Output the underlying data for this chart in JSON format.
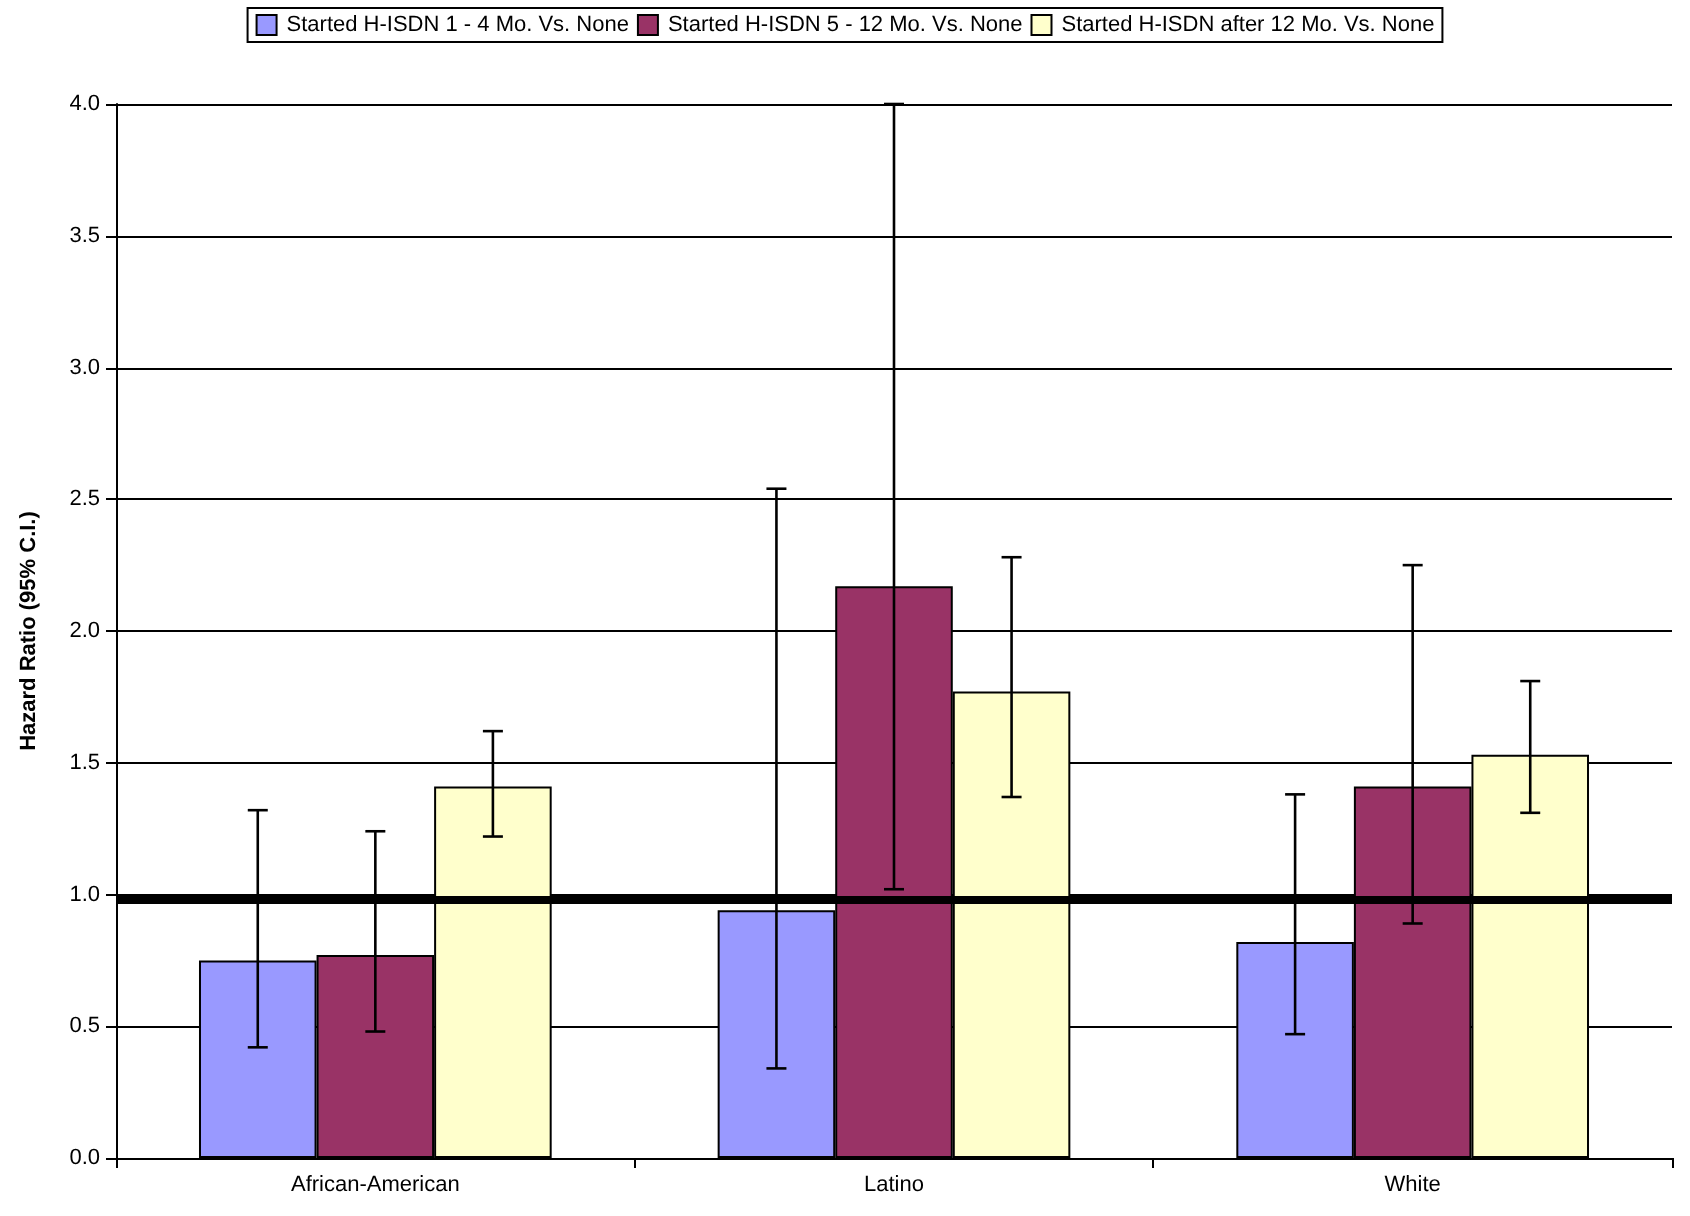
{
  "chart_data": {
    "type": "bar",
    "ylabel": "Hazard Ratio (95% C.I.)",
    "categories": [
      "African-American",
      "Latino",
      "White"
    ],
    "series": [
      {
        "name": "Started H-ISDN 1 - 4 Mo. Vs. None",
        "color": "#9999ff",
        "values": [
          0.75,
          0.94,
          0.82
        ],
        "errors": [
          [
            0.42,
            1.32
          ],
          [
            0.34,
            2.54
          ],
          [
            0.47,
            1.38
          ]
        ]
      },
      {
        "name": "Started H-ISDN 5 - 12 Mo. Vs. None",
        "color": "#993366",
        "values": [
          0.77,
          2.17,
          1.41
        ],
        "errors": [
          [
            0.48,
            1.24
          ],
          [
            1.02,
            4.0
          ],
          [
            0.89,
            2.25
          ]
        ]
      },
      {
        "name": "Started H-ISDN after 12 Mo. Vs. None",
        "color": "#ffffcc",
        "values": [
          1.41,
          1.77,
          1.53
        ],
        "errors": [
          [
            1.22,
            1.62
          ],
          [
            1.37,
            2.28
          ],
          [
            1.31,
            1.81
          ]
        ]
      }
    ],
    "ylim": [
      0,
      4
    ],
    "yticks": [
      {
        "value": 0,
        "label": "0.0"
      },
      {
        "value": 0.5,
        "label": "0.5"
      },
      {
        "value": 1,
        "label": "1.0"
      },
      {
        "value": 1.5,
        "label": "1.5"
      },
      {
        "value": 2,
        "label": "2.0"
      },
      {
        "value": 2.5,
        "label": "2.5"
      },
      {
        "value": 3,
        "label": "3.0"
      },
      {
        "value": 3.5,
        "label": "3.5"
      },
      {
        "value": 4,
        "label": "4.0"
      }
    ],
    "ref_lines": [
      {
        "axis": "y",
        "value": 0.98,
        "color": "#000000",
        "line_style": "solid"
      }
    ],
    "grid": "y",
    "legend": "top"
  }
}
